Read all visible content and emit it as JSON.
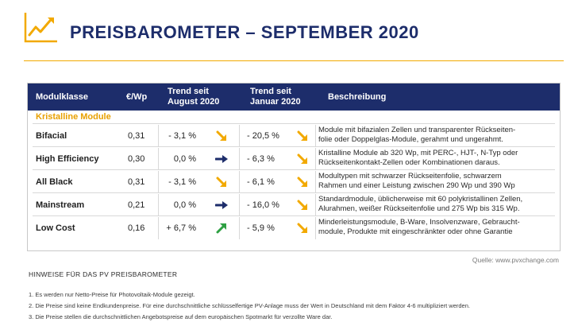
{
  "title": "PREISBAROMETER –  SEPTEMBER 2020",
  "colors": {
    "navy": "#1d2d6b",
    "accent": "#f2a900",
    "down_arrow": "#f2a900",
    "flat_arrow": "#1d2d6b",
    "up_arrow": "#2ea043"
  },
  "table": {
    "headers": {
      "modulklasse": "Modulklasse",
      "preis": "€/Wp",
      "trend_august_line1": "Trend seit",
      "trend_august_line2": "August 2020",
      "trend_januar_line1": "Trend seit",
      "trend_januar_line2": "Januar 2020",
      "beschreibung": "Beschreibung"
    },
    "section_label": "Kristalline Module",
    "rows": [
      {
        "name": "Bifacial",
        "price": "0,31",
        "trend_aug": "- 3,1 %",
        "trend_aug_icon": "arrow-down-right-icon",
        "trend_jan": "- 20,5 %",
        "trend_jan_icon": "arrow-down-right-icon",
        "desc_line1": "Module mit bifazialen Zellen und transparenter Rückseiten-",
        "desc_line2": "folie oder Doppelglas-Module, gerahmt und ungerahmt."
      },
      {
        "name": "High Efficiency",
        "price": "0,30",
        "trend_aug": "0,0 %",
        "trend_aug_icon": "arrow-right-icon",
        "trend_jan": "- 6,3 %",
        "trend_jan_icon": "arrow-down-right-icon",
        "desc_line1": "Kristalline Module ab 320 Wp, mit PERC-, HJT-, N-Typ oder",
        "desc_line2": "Rückseitenkontakt-Zellen oder Kombinationen daraus."
      },
      {
        "name": "All Black",
        "price": "0,31",
        "trend_aug": "- 3,1 %",
        "trend_aug_icon": "arrow-down-right-icon",
        "trend_jan": "- 6,1 %",
        "trend_jan_icon": "arrow-down-right-icon",
        "desc_line1": "Modultypen mit schwarzer Rückseitenfolie, schwarzem",
        "desc_line2": "Rahmen und einer Leistung  zwischen 290 Wp und 390 Wp"
      },
      {
        "name": "Mainstream",
        "price": "0,21",
        "trend_aug": "0,0 %",
        "trend_aug_icon": "arrow-right-icon",
        "trend_jan": "- 16,0 %",
        "trend_jan_icon": "arrow-down-right-icon",
        "desc_line1": "Standardmodule, üblicherweise mit 60 polykristallinen Zellen,",
        "desc_line2": "Alurahmen, weißer Rückseitenfolie und 275 Wp bis 315 Wp."
      },
      {
        "name": "Low Cost",
        "price": "0,16",
        "trend_aug": "+ 6,7 %",
        "trend_aug_icon": "arrow-up-right-icon",
        "trend_jan": "- 5,9 %",
        "trend_jan_icon": "arrow-down-right-icon",
        "desc_line1": "Minderleistungsmodule, B-Ware, Insolvenzware, Gebraucht-",
        "desc_line2": "module, Produkte mit eingeschränkter oder ohne Garantie"
      }
    ]
  },
  "source": "Quelle: www.pvxchange.com",
  "notes": {
    "title": "HINWEISE FÜR DAS PV PREISBAROMETER",
    "items": [
      "1.  Es werden nur Netto-Preise für Photovoltaik-Module gezeigt.",
      "2. Die Preise sind keine Endkundenpreise. Für eine durchschnittliche schlüsselfertige PV-Anlage muss der Wert in Deutschland mit dem Faktor 4-6 multipliziert werden.",
      "3. Die Preise stellen die durchschnittlichen Angebotspreise auf dem europäischen Spotmarkt für verzollte Ware dar."
    ]
  }
}
